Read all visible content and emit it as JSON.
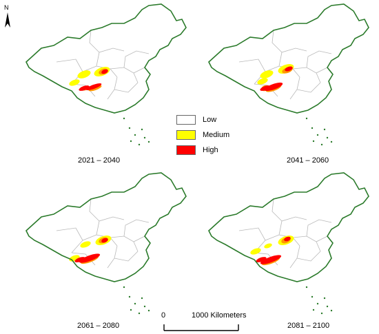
{
  "north_label": "N",
  "panels": [
    {
      "period": "2021 – 2040"
    },
    {
      "period": "2041 – 2060"
    },
    {
      "period": "2061 – 2080"
    },
    {
      "period": "2081 – 2100"
    }
  ],
  "legend": [
    {
      "label": "Low",
      "color": "#ffffff"
    },
    {
      "label": "Medium",
      "color": "#ffff00"
    },
    {
      "label": "High",
      "color": "#ff0000"
    }
  ],
  "scalebar": {
    "zero": "0",
    "end": "1000 Kilometers"
  },
  "colors": {
    "border": "#2a7a2a",
    "province": "#b8b8b8",
    "orange": "#ff9900"
  }
}
